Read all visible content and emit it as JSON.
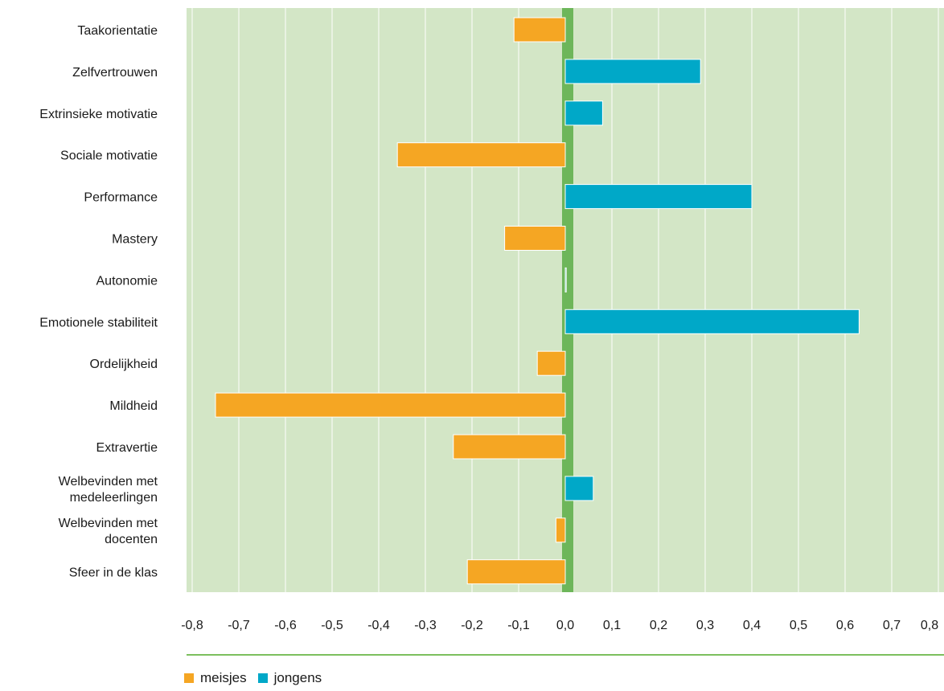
{
  "chart_data": {
    "type": "bar",
    "orientation": "horizontal",
    "categories": [
      "Taakorientatie",
      "Zelfvertrouwen",
      "Extrinsieke motivatie",
      "Sociale motivatie",
      "Performance",
      "Mastery",
      "Autonomie",
      "Emotionele stabiliteit",
      "Ordelijkheid",
      "Mildheid",
      "Extravertie",
      "Welbevinden met\nmedeleerlingen",
      "Welbevinden met\ndocenten",
      "Sfeer in de klas"
    ],
    "values": [
      -0.11,
      0.29,
      0.08,
      -0.36,
      0.4,
      -0.13,
      0.0,
      0.63,
      -0.06,
      -0.75,
      -0.24,
      0.06,
      -0.02,
      -0.21
    ],
    "series": [
      {
        "name": "meisjes",
        "color": "#F5A623"
      },
      {
        "name": "jongens",
        "color": "#00A8C8"
      }
    ],
    "xlim": [
      -0.8,
      0.8
    ],
    "xticks": [
      "-0,8",
      "-0,7",
      "-0,6",
      "-0,5",
      "-0,4",
      "-0,3",
      "-0,2",
      "-0,1",
      "0,0",
      "0,1",
      "0,2",
      "0,3",
      "0,4",
      "0,5",
      "0,6",
      "0,7",
      "0,8"
    ],
    "title": "",
    "xlabel": "",
    "ylabel": "",
    "grid": true,
    "legend_position": "bottom-left",
    "colors": {
      "plot_background": "#D3E6C6",
      "grid": "#FFFFFF",
      "zero_line": "#6DB65A",
      "axis_rule": "#7CBF5E"
    }
  }
}
